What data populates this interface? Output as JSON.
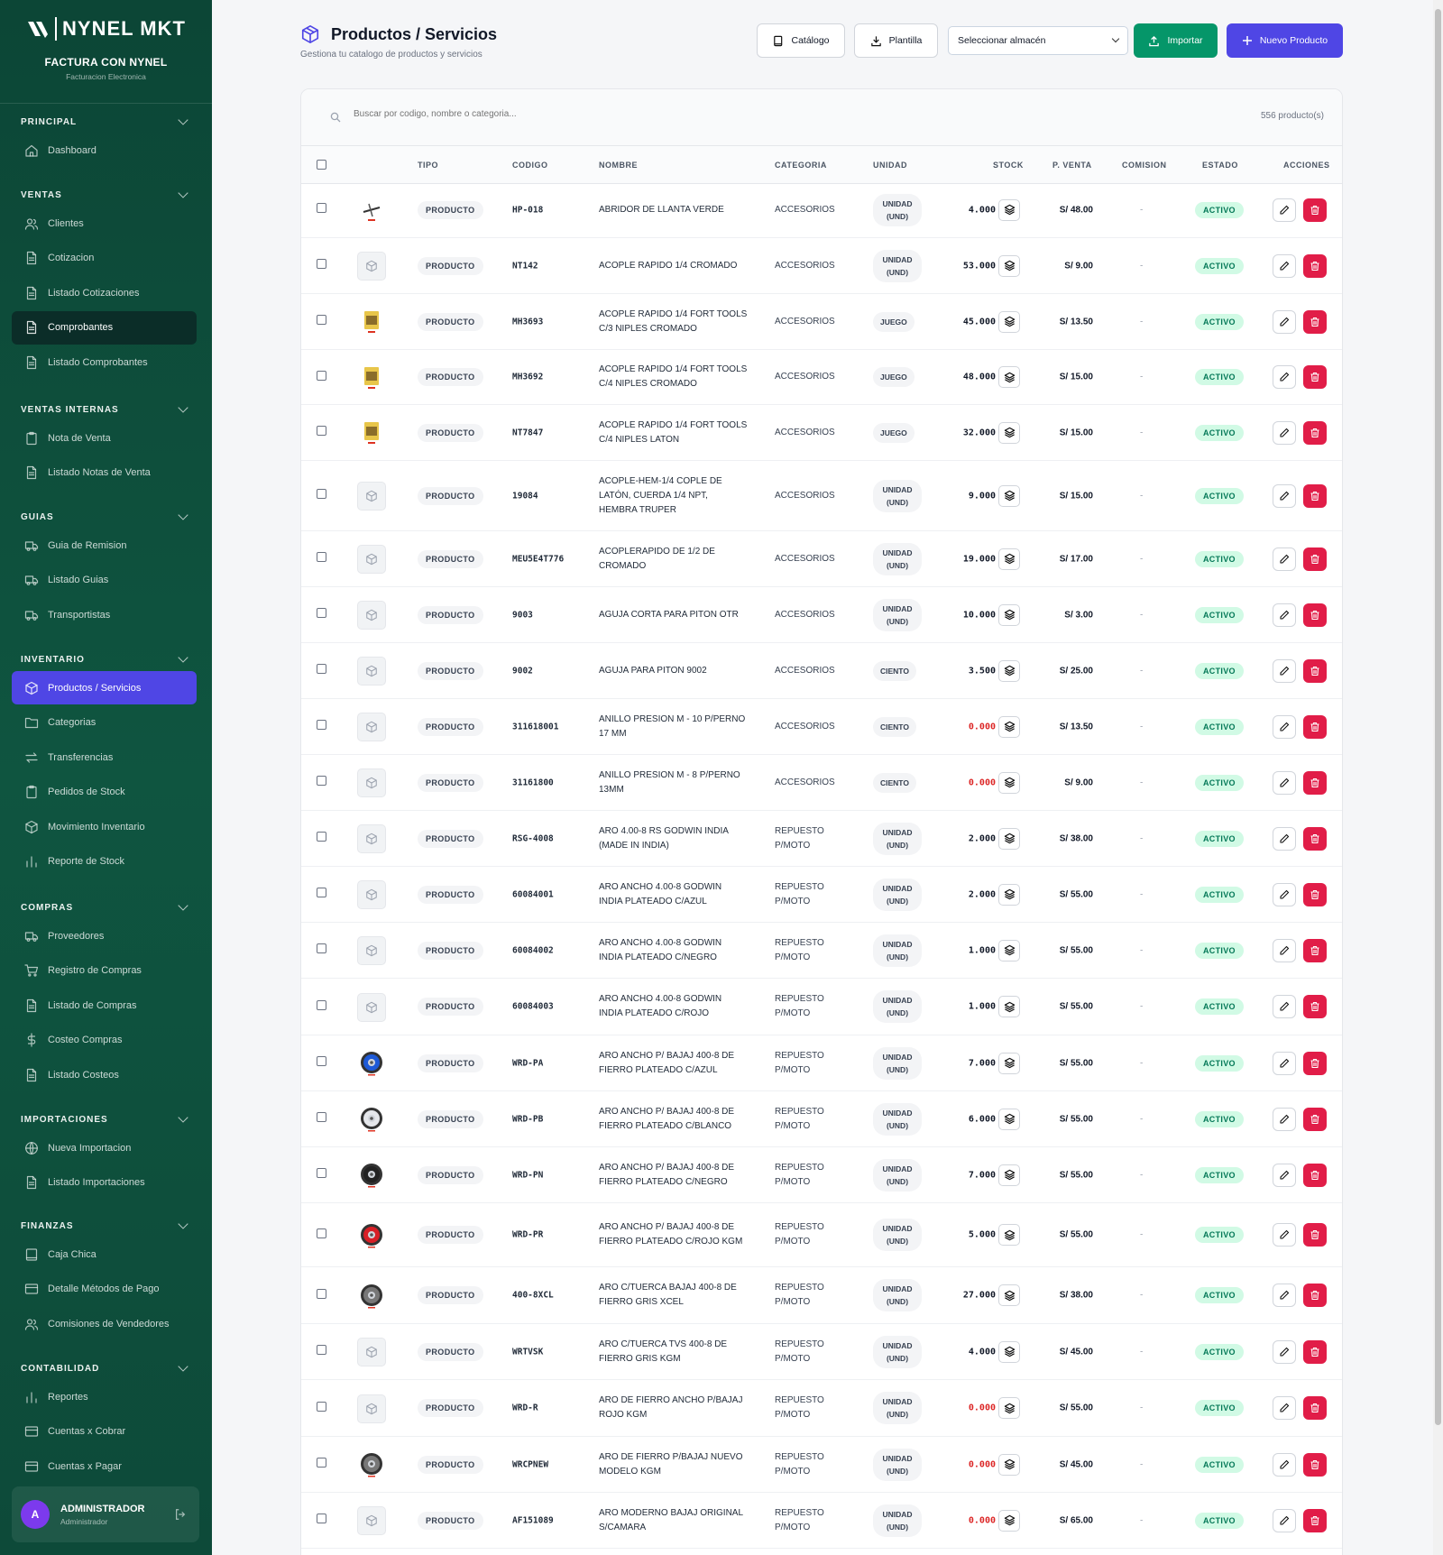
{
  "brand": {
    "logo": "NYNEL MKT",
    "title": "FACTURA CON NYNEL",
    "subtitle": "Facturacion Electronica"
  },
  "sidebar": {
    "sections": [
      {
        "title": "PRINCIPAL",
        "items": [
          {
            "label": "Dashboard",
            "icon": "home-icon"
          }
        ]
      },
      {
        "title": "VENTAS",
        "items": [
          {
            "label": "Clientes",
            "icon": "users-icon"
          },
          {
            "label": "Cotizacion",
            "icon": "file-icon"
          },
          {
            "label": "Listado Cotizaciones",
            "icon": "file-icon"
          },
          {
            "label": "Comprobantes",
            "icon": "file-icon",
            "state": "dark"
          },
          {
            "label": "Listado Comprobantes",
            "icon": "file-icon"
          }
        ]
      },
      {
        "title": "VENTAS INTERNAS",
        "items": [
          {
            "label": "Nota de Venta",
            "icon": "clipboard-icon"
          },
          {
            "label": "Listado Notas de Venta",
            "icon": "file-icon"
          }
        ]
      },
      {
        "title": "GUIAS",
        "items": [
          {
            "label": "Guia de Remision",
            "icon": "truck-icon"
          },
          {
            "label": "Listado Guias",
            "icon": "truck-icon"
          },
          {
            "label": "Transportistas",
            "icon": "truck-icon"
          }
        ]
      },
      {
        "title": "INVENTARIO",
        "items": [
          {
            "label": "Productos / Servicios",
            "icon": "box-icon",
            "state": "active"
          },
          {
            "label": "Categorias",
            "icon": "folder-icon"
          },
          {
            "label": "Transferencias",
            "icon": "arrows-icon"
          },
          {
            "label": "Pedidos de Stock",
            "icon": "clipboard-icon"
          },
          {
            "label": "Movimiento Inventario",
            "icon": "box-icon"
          },
          {
            "label": "Reporte de Stock",
            "icon": "bar-chart-icon"
          }
        ]
      },
      {
        "title": "COMPRAS",
        "items": [
          {
            "label": "Proveedores",
            "icon": "truck-icon"
          },
          {
            "label": "Registro de Compras",
            "icon": "cart-icon"
          },
          {
            "label": "Listado de Compras",
            "icon": "file-icon"
          },
          {
            "label": "Costeo Compras",
            "icon": "dollar-icon"
          },
          {
            "label": "Listado Costeos",
            "icon": "file-icon"
          }
        ]
      },
      {
        "title": "IMPORTACIONES",
        "items": [
          {
            "label": "Nueva Importacion",
            "icon": "globe-icon"
          },
          {
            "label": "Listado Importaciones",
            "icon": "file-icon"
          }
        ]
      },
      {
        "title": "FINANZAS",
        "items": [
          {
            "label": "Caja Chica",
            "icon": "book-icon"
          },
          {
            "label": "Detalle Métodos de Pago",
            "icon": "card-icon"
          },
          {
            "label": "Comisiones de Vendedores",
            "icon": "users-icon"
          }
        ]
      },
      {
        "title": "CONTABILIDAD",
        "items": [
          {
            "label": "Reportes",
            "icon": "bar-chart-icon"
          },
          {
            "label": "Cuentas x Cobrar",
            "icon": "card-icon"
          },
          {
            "label": "Cuentas x Pagar",
            "icon": "card-icon"
          }
        ]
      }
    ]
  },
  "user": {
    "initial": "A",
    "name": "ADMINISTRADOR",
    "role": "Administrador"
  },
  "header": {
    "title": "Productos / Servicios",
    "subtitle": "Gestiona tu catalogo de productos y servicios"
  },
  "toolbar": {
    "catalog": "Catálogo",
    "template": "Plantilla",
    "warehouse": "Seleccionar almacén",
    "import": "Importar",
    "new_product": "Nuevo Producto"
  },
  "search": {
    "placeholder": "Buscar por codigo, nombre o categoria...",
    "count": "556 producto(s)"
  },
  "columns": {
    "tipo": "TIPO",
    "codigo": "CODIGO",
    "nombre": "NOMBRE",
    "categoria": "CATEGORIA",
    "unidad": "UNIDAD",
    "stock": "STOCK",
    "precio": "P. VENTA",
    "comision": "COMISION",
    "estado": "ESTADO",
    "acciones": "ACCIONES"
  },
  "colors": {
    "sidebar": "#0f5540",
    "accent": "#4f46e5",
    "import": "#059669",
    "delete": "#e11d48",
    "active_badge": "#d1fae5"
  },
  "products": [
    {
      "img": "tool",
      "tipo": "PRODUCTO",
      "codigo": "HP-018",
      "nombre": "ABRIDOR DE LLANTA VERDE",
      "categoria": "ACCESORIOS",
      "unidad": "UNIDAD (UND)",
      "stock": "4.000",
      "precio": "S/ 48.00",
      "comision": "-",
      "estado": "ACTIVO"
    },
    {
      "img": "none",
      "tipo": "PRODUCTO",
      "codigo": "NT142",
      "nombre": "ACOPLE RAPIDO 1/4 CROMADO",
      "categoria": "ACCESORIOS",
      "unidad": "UNIDAD (UND)",
      "stock": "53.000",
      "precio": "S/ 9.00",
      "comision": "-",
      "estado": "ACTIVO"
    },
    {
      "img": "pack",
      "tipo": "PRODUCTO",
      "codigo": "MH3693",
      "nombre": "ACOPLE RAPIDO 1/4 FORT TOOLS C/3 NIPLES CROMADO",
      "categoria": "ACCESORIOS",
      "unidad": "JUEGO",
      "stock": "45.000",
      "precio": "S/ 13.50",
      "comision": "-",
      "estado": "ACTIVO"
    },
    {
      "img": "pack",
      "tipo": "PRODUCTO",
      "codigo": "MH3692",
      "nombre": "ACOPLE RAPIDO 1/4 FORT TOOLS C/4 NIPLES CROMADO",
      "categoria": "ACCESORIOS",
      "unidad": "JUEGO",
      "stock": "48.000",
      "precio": "S/ 15.00",
      "comision": "-",
      "estado": "ACTIVO"
    },
    {
      "img": "pack2",
      "tipo": "PRODUCTO",
      "codigo": "NT7847",
      "nombre": "ACOPLE RAPIDO 1/4 FORT TOOLS C/4 NIPLES LATON",
      "categoria": "ACCESORIOS",
      "unidad": "JUEGO",
      "stock": "32.000",
      "precio": "S/ 15.00",
      "comision": "-",
      "estado": "ACTIVO"
    },
    {
      "img": "none",
      "tipo": "PRODUCTO",
      "codigo": "19084",
      "nombre": "ACOPLE-HEM-1/4 COPLE DE LATÓN, CUERDA 1/4 NPT, HEMBRA TRUPER",
      "categoria": "ACCESORIOS",
      "unidad": "UNIDAD (UND)",
      "stock": "9.000",
      "precio": "S/ 15.00",
      "comision": "-",
      "estado": "ACTIVO"
    },
    {
      "img": "none",
      "tipo": "PRODUCTO",
      "codigo": "MEU5E4T776",
      "nombre": "ACOPLERAPIDO DE 1/2 DE CROMADO",
      "categoria": "ACCESORIOS",
      "unidad": "UNIDAD (UND)",
      "stock": "19.000",
      "precio": "S/ 17.00",
      "comision": "-",
      "estado": "ACTIVO"
    },
    {
      "img": "none",
      "tipo": "PRODUCTO",
      "codigo": "9003",
      "nombre": "AGUJA CORTA PARA PITON OTR",
      "categoria": "ACCESORIOS",
      "unidad": "UNIDAD (UND)",
      "stock": "10.000",
      "precio": "S/ 3.00",
      "comision": "-",
      "estado": "ACTIVO"
    },
    {
      "img": "none",
      "tipo": "PRODUCTO",
      "codigo": "9002",
      "nombre": "AGUJA PARA PITON 9002",
      "categoria": "ACCESORIOS",
      "unidad": "CIENTO",
      "stock": "3.500",
      "precio": "S/ 25.00",
      "comision": "-",
      "estado": "ACTIVO"
    },
    {
      "img": "none",
      "tipo": "PRODUCTO",
      "codigo": "311618001",
      "nombre": "ANILLO PRESION M - 10 P/PERNO 17 MM",
      "categoria": "ACCESORIOS",
      "unidad": "CIENTO",
      "stock": "0.000",
      "precio": "S/ 13.50",
      "comision": "-",
      "estado": "ACTIVO"
    },
    {
      "img": "none",
      "tipo": "PRODUCTO",
      "codigo": "31161800",
      "nombre": "ANILLO PRESION M - 8 P/PERNO 13MM",
      "categoria": "ACCESORIOS",
      "unidad": "CIENTO",
      "stock": "0.000",
      "precio": "S/ 9.00",
      "comision": "-",
      "estado": "ACTIVO"
    },
    {
      "img": "none",
      "tipo": "PRODUCTO",
      "codigo": "RSG-4008",
      "nombre": "ARO 4.00-8 RS GODWIN INDIA (MADE IN INDIA)",
      "categoria": "REPUESTO P/MOTO",
      "unidad": "UNIDAD (UND)",
      "stock": "2.000",
      "precio": "S/ 38.00",
      "comision": "-",
      "estado": "ACTIVO"
    },
    {
      "img": "none",
      "tipo": "PRODUCTO",
      "codigo": "60084001",
      "nombre": "ARO ANCHO 4.00-8 GODWIN INDIA PLATEADO C/AZUL",
      "categoria": "REPUESTO P/MOTO",
      "unidad": "UNIDAD (UND)",
      "stock": "2.000",
      "precio": "S/ 55.00",
      "comision": "-",
      "estado": "ACTIVO"
    },
    {
      "img": "none",
      "tipo": "PRODUCTO",
      "codigo": "60084002",
      "nombre": "ARO ANCHO 4.00-8 GODWIN INDIA PLATEADO C/NEGRO",
      "categoria": "REPUESTO P/MOTO",
      "unidad": "UNIDAD (UND)",
      "stock": "1.000",
      "precio": "S/ 55.00",
      "comision": "-",
      "estado": "ACTIVO"
    },
    {
      "img": "none",
      "tipo": "PRODUCTO",
      "codigo": "60084003",
      "nombre": "ARO ANCHO 4.00-8 GODWIN INDIA PLATEADO C/ROJO",
      "categoria": "REPUESTO P/MOTO",
      "unidad": "UNIDAD (UND)",
      "stock": "1.000",
      "precio": "S/ 55.00",
      "comision": "-",
      "estado": "ACTIVO"
    },
    {
      "img": "wheel-blue",
      "tipo": "PRODUCTO",
      "codigo": "WRD-PA",
      "nombre": "ARO ANCHO P/ BAJAJ 400-8 DE FIERRO PLATEADO C/AZUL",
      "categoria": "REPUESTO P/MOTO",
      "unidad": "UNIDAD (UND)",
      "stock": "7.000",
      "precio": "S/ 55.00",
      "comision": "-",
      "estado": "ACTIVO"
    },
    {
      "img": "wheel-white",
      "tipo": "PRODUCTO",
      "codigo": "WRD-PB",
      "nombre": "ARO ANCHO P/ BAJAJ 400-8 DE FIERRO PLATEADO C/BLANCO",
      "categoria": "REPUESTO P/MOTO",
      "unidad": "UNIDAD (UND)",
      "stock": "6.000",
      "precio": "S/ 55.00",
      "comision": "-",
      "estado": "ACTIVO"
    },
    {
      "img": "wheel-black",
      "tipo": "PRODUCTO",
      "codigo": "WRD-PN",
      "nombre": "ARO ANCHO P/ BAJAJ 400-8 DE FIERRO PLATEADO C/NEGRO",
      "categoria": "REPUESTO P/MOTO",
      "unidad": "UNIDAD (UND)",
      "stock": "7.000",
      "precio": "S/ 55.00",
      "comision": "-",
      "estado": "ACTIVO"
    },
    {
      "img": "wheel-red",
      "tipo": "PRODUCTO",
      "codigo": "WRD-PR",
      "nombre": "ARO ANCHO P/ BAJAJ 400-8 DE FIERRO PLATEADO C/ROJO KGM",
      "categoria": "REPUESTO P/MOTO",
      "unidad": "UNIDAD (UND)",
      "stock": "5.000",
      "precio": "S/ 55.00",
      "comision": "-",
      "estado": "ACTIVO"
    },
    {
      "img": "wheel-grey",
      "tipo": "PRODUCTO",
      "codigo": "400-8XCL",
      "nombre": "ARO C/TUERCA BAJAJ 400-8 DE FIERRO GRIS XCEL",
      "categoria": "REPUESTO P/MOTO",
      "unidad": "UNIDAD (UND)",
      "stock": "27.000",
      "precio": "S/ 38.00",
      "comision": "-",
      "estado": "ACTIVO"
    },
    {
      "img": "none",
      "tipo": "PRODUCTO",
      "codigo": "WRTVSK",
      "nombre": "ARO C/TUERCA TVS 400-8 DE FIERRO GRIS KGM",
      "categoria": "REPUESTO P/MOTO",
      "unidad": "UNIDAD (UND)",
      "stock": "4.000",
      "precio": "S/ 45.00",
      "comision": "-",
      "estado": "ACTIVO"
    },
    {
      "img": "none",
      "tipo": "PRODUCTO",
      "codigo": "WRD-R",
      "nombre": "ARO DE FIERRO ANCHO P/BAJAJ ROJO KGM",
      "categoria": "REPUESTO P/MOTO",
      "unidad": "UNIDAD (UND)",
      "stock": "0.000",
      "precio": "S/ 55.00",
      "comision": "-",
      "estado": "ACTIVO"
    },
    {
      "img": "wheel-grey",
      "tipo": "PRODUCTO",
      "codigo": "WRCPNEW",
      "nombre": "ARO DE FIERRO P/BAJAJ NUEVO MODELO KGM",
      "categoria": "REPUESTO P/MOTO",
      "unidad": "UNIDAD (UND)",
      "stock": "0.000",
      "precio": "S/ 45.00",
      "comision": "-",
      "estado": "ACTIVO"
    },
    {
      "img": "none",
      "tipo": "PRODUCTO",
      "codigo": "AF151089",
      "nombre": "ARO MODERNO BAJAJ ORIGINAL S/CAMARA",
      "categoria": "REPUESTO P/MOTO",
      "unidad": "UNIDAD (UND)",
      "stock": "0.000",
      "precio": "S/ 65.00",
      "comision": "-",
      "estado": "ACTIVO"
    }
  ]
}
